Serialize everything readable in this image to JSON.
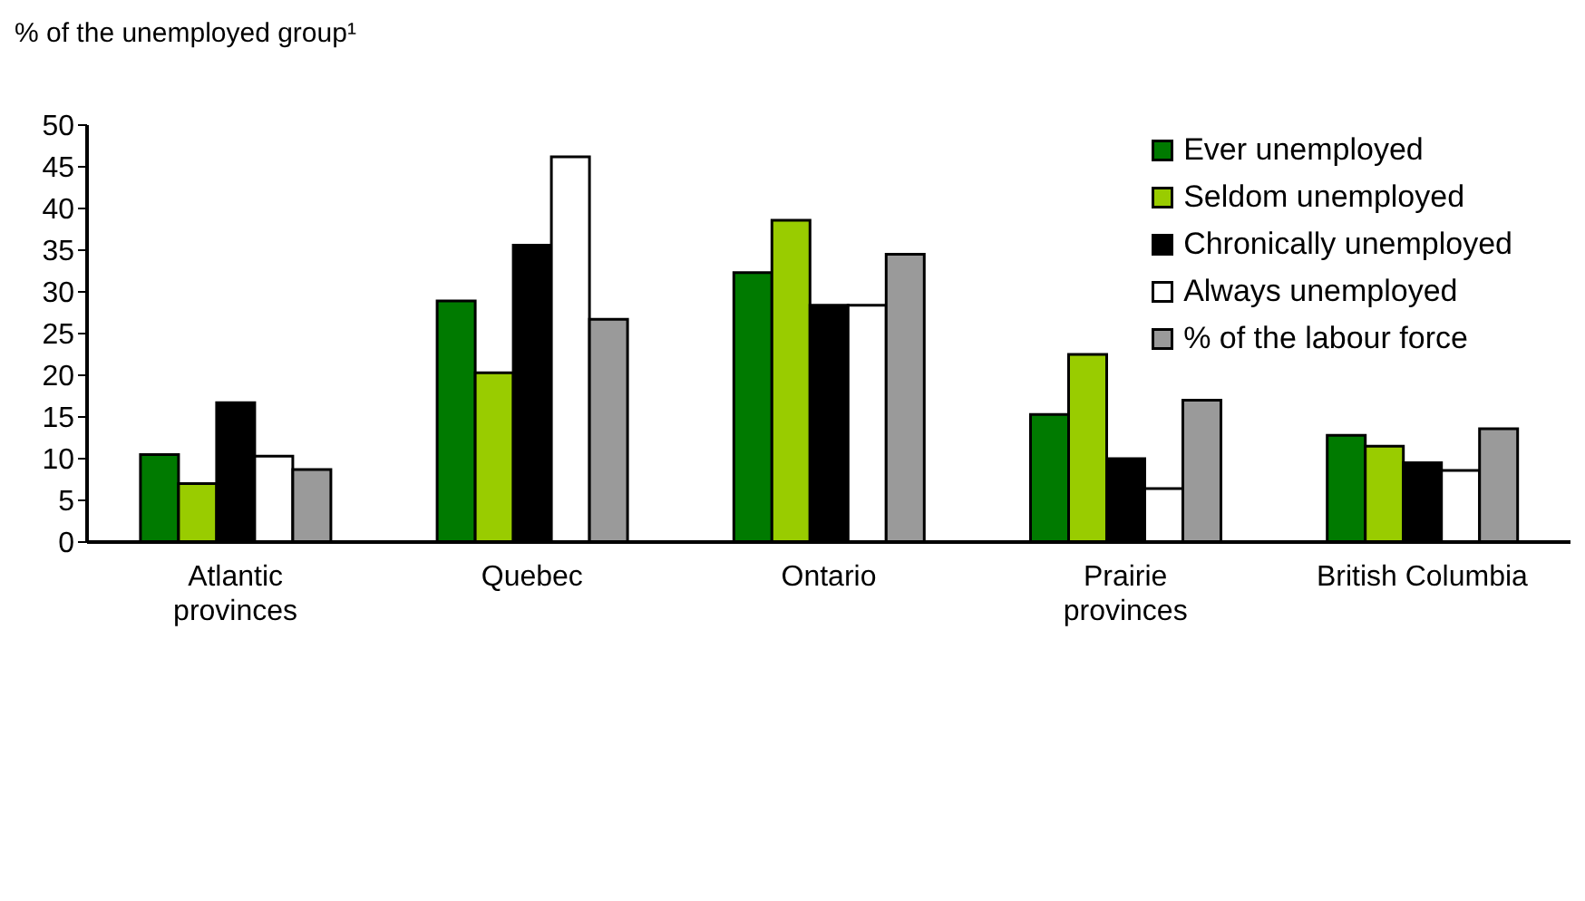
{
  "chart_data": {
    "type": "bar",
    "ylabel": "% of the unemployed group¹",
    "categories": [
      "Atlantic provinces",
      "Quebec",
      "Ontario",
      "Prairie provinces",
      "British Columbia"
    ],
    "series": [
      {
        "name": "Ever unemployed",
        "color": "#007a00",
        "values": [
          10.5,
          28.9,
          32.3,
          15.3,
          12.8
        ]
      },
      {
        "name": "Seldom unemployed",
        "color": "#99cc00",
        "values": [
          7,
          20.3,
          38.6,
          22.5,
          11.5
        ]
      },
      {
        "name": "Chronically unemployed",
        "color": "#000000",
        "values": [
          16.7,
          35.6,
          28.4,
          10,
          9.5
        ]
      },
      {
        "name": "Always unemployed",
        "color": "#ffffff",
        "values": [
          10.3,
          46.2,
          28.4,
          6.4,
          8.6
        ]
      },
      {
        "name": "% of the labour force",
        "color": "#9a9a9a",
        "values": [
          8.7,
          26.7,
          34.5,
          17,
          13.6
        ]
      }
    ],
    "ylim": [
      0,
      50
    ],
    "yticks": [
      0,
      5,
      10,
      15,
      20,
      25,
      30,
      35,
      40,
      45,
      50
    ],
    "grid": false,
    "legend": "top right"
  }
}
